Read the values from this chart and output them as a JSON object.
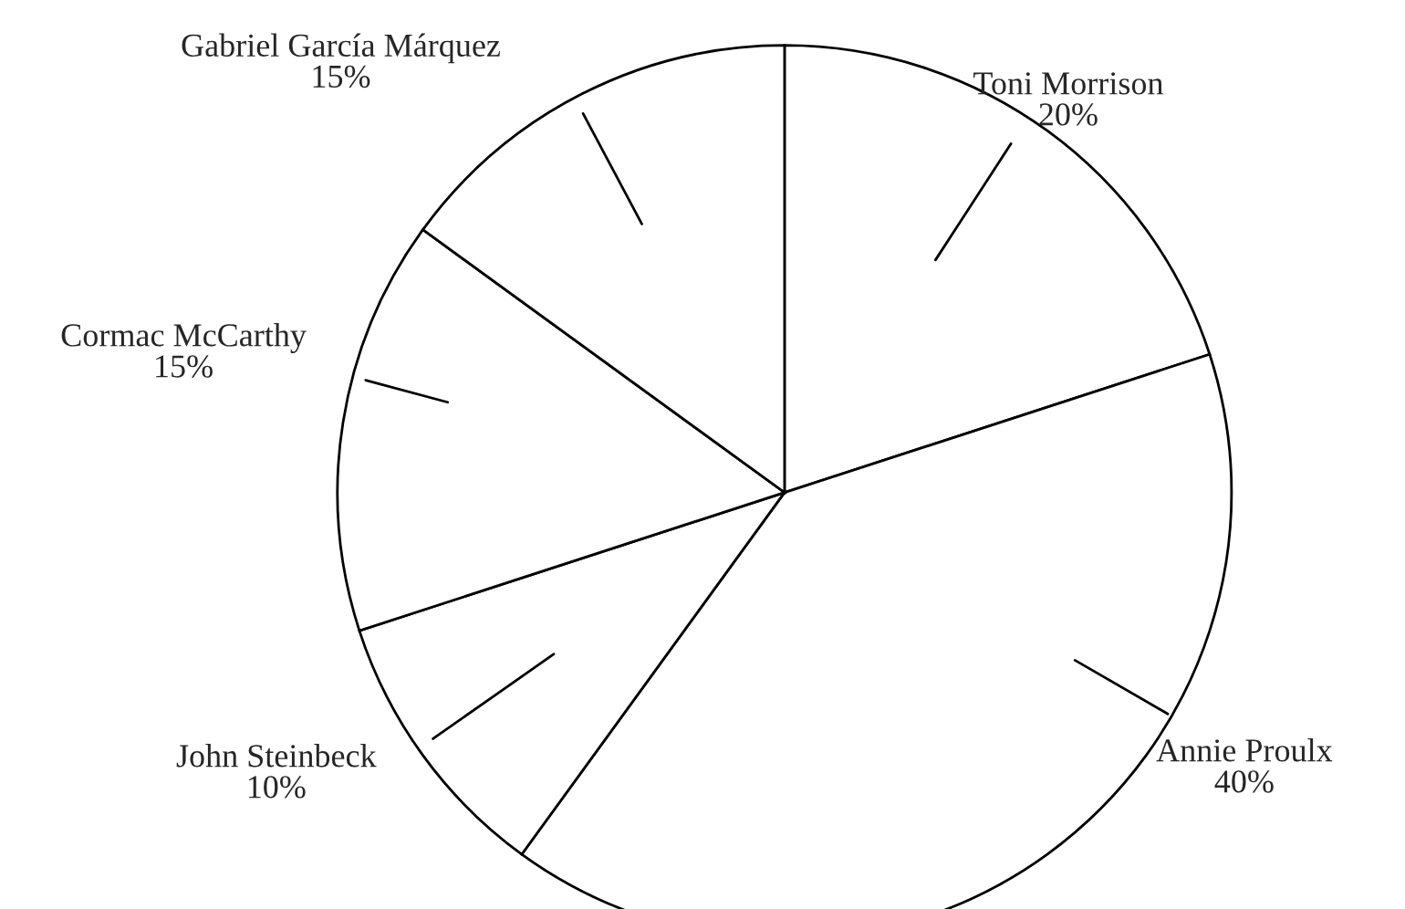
{
  "chart_data": {
    "type": "pie",
    "categories": [
      "Toni Morrison",
      "Annie Proulx",
      "John Steinbeck",
      "Cormac McCarthy",
      "Gabriel García Márquez"
    ],
    "values": [
      20,
      40,
      10,
      15,
      15
    ],
    "value_labels": [
      "20%",
      "40%",
      "10%",
      "15%",
      "15%"
    ],
    "colors": [
      "#ffffff",
      "#ffffff",
      "#ffffff",
      "#ffffff",
      "#ffffff"
    ],
    "legend": false
  }
}
